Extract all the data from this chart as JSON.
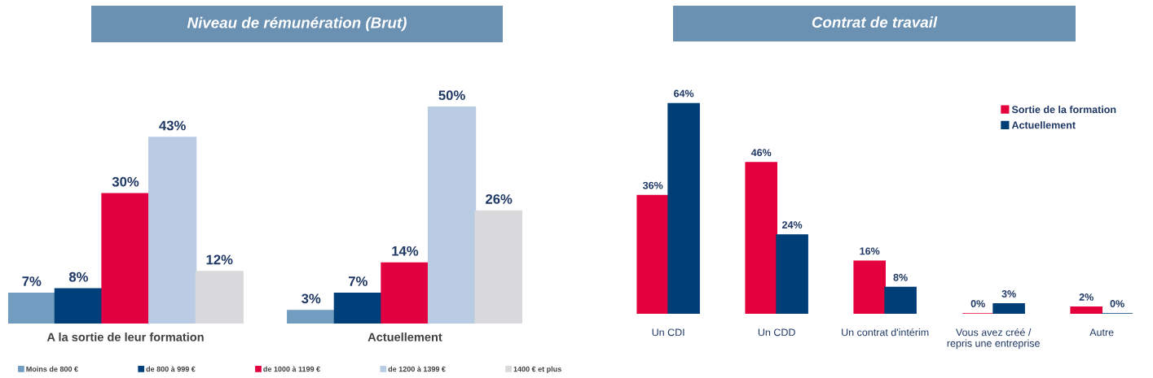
{
  "chart_data": [
    {
      "type": "bar",
      "title": "Niveau de rémunération (Brut)",
      "categories": [
        "A la sortie de leur formation",
        "Actuellement"
      ],
      "series": [
        {
          "name": "Moins de 800 €",
          "color": "#729cc0",
          "values": [
            7,
            3
          ],
          "value_labels": [
            "7%",
            "3%"
          ]
        },
        {
          "name": "de 800 à 999 €",
          "color": "#00407a",
          "values": [
            8,
            7
          ],
          "value_labels": [
            "8%",
            "7%"
          ]
        },
        {
          "name": "de 1000 à 1199 €",
          "color": "#e30040",
          "values": [
            30,
            14
          ],
          "value_labels": [
            "30%",
            "14%"
          ]
        },
        {
          "name": "de 1200 à 1399 €",
          "color": "#b9cce4",
          "values": [
            43,
            50
          ],
          "value_labels": [
            "43%",
            "50%"
          ]
        },
        {
          "name": "1400 € et plus",
          "color": "#d9d9db",
          "values": [
            12,
            26
          ],
          "value_labels": [
            "12%",
            "26%"
          ]
        }
      ],
      "legend": "bottom",
      "tick_labels": "x",
      "grid": false
    },
    {
      "type": "bar",
      "title": "Contrat de travail",
      "categories": [
        "Un CDI",
        "Un CDD",
        "Un contrat d'intérim",
        "Vous avez créé /\nrepris une entreprise",
        "Autre"
      ],
      "series": [
        {
          "name": "Sortie de la formation",
          "color": "#e3003c",
          "values": [
            36,
            46,
            16,
            0,
            2
          ],
          "value_labels": [
            "36%",
            "46%",
            "16%",
            "0%",
            "2%"
          ]
        },
        {
          "name": "Actuellement",
          "color": "#003e78",
          "values": [
            64,
            24,
            8,
            3,
            0
          ],
          "value_labels": [
            "64%",
            "24%",
            "8%",
            "3%",
            "0%"
          ]
        }
      ],
      "legend": "top right",
      "tick_labels": "x",
      "grid": false
    }
  ]
}
